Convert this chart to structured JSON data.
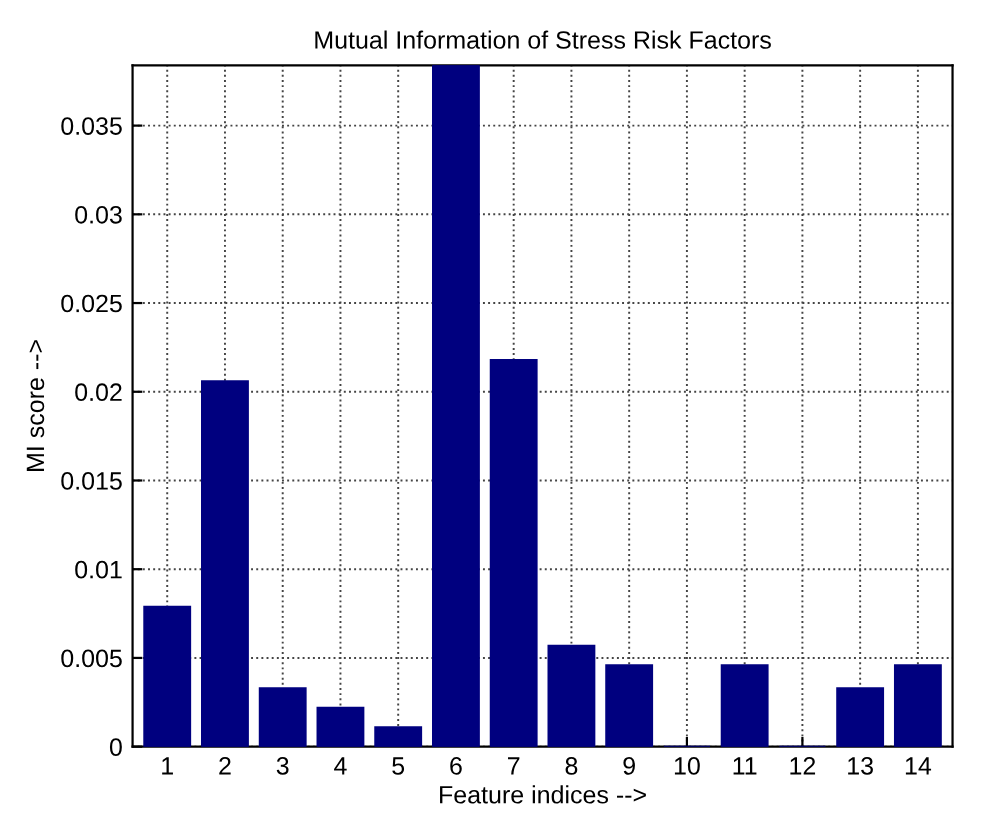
{
  "chart_data": {
    "type": "bar",
    "title": "Mutual Information of Stress Risk Factors",
    "xlabel": "Feature indices -->",
    "ylabel": "MI score -->",
    "categories": [
      "1",
      "2",
      "3",
      "4",
      "5",
      "6",
      "7",
      "8",
      "9",
      "10",
      "11",
      "12",
      "13",
      "14"
    ],
    "values": [
      0.0079,
      0.0206,
      0.0033,
      0.0022,
      0.0011,
      0.0384,
      0.0218,
      0.0057,
      0.0046,
      0,
      0.0046,
      0,
      0.0033,
      0.0046
    ],
    "color": "#00007f",
    "ylim": [
      0,
      0.0384
    ],
    "yticks": [
      0,
      0.005,
      0.01,
      0.015,
      0.02,
      0.025,
      0.03,
      0.035
    ],
    "grid": true,
    "line_style": "dotted"
  }
}
